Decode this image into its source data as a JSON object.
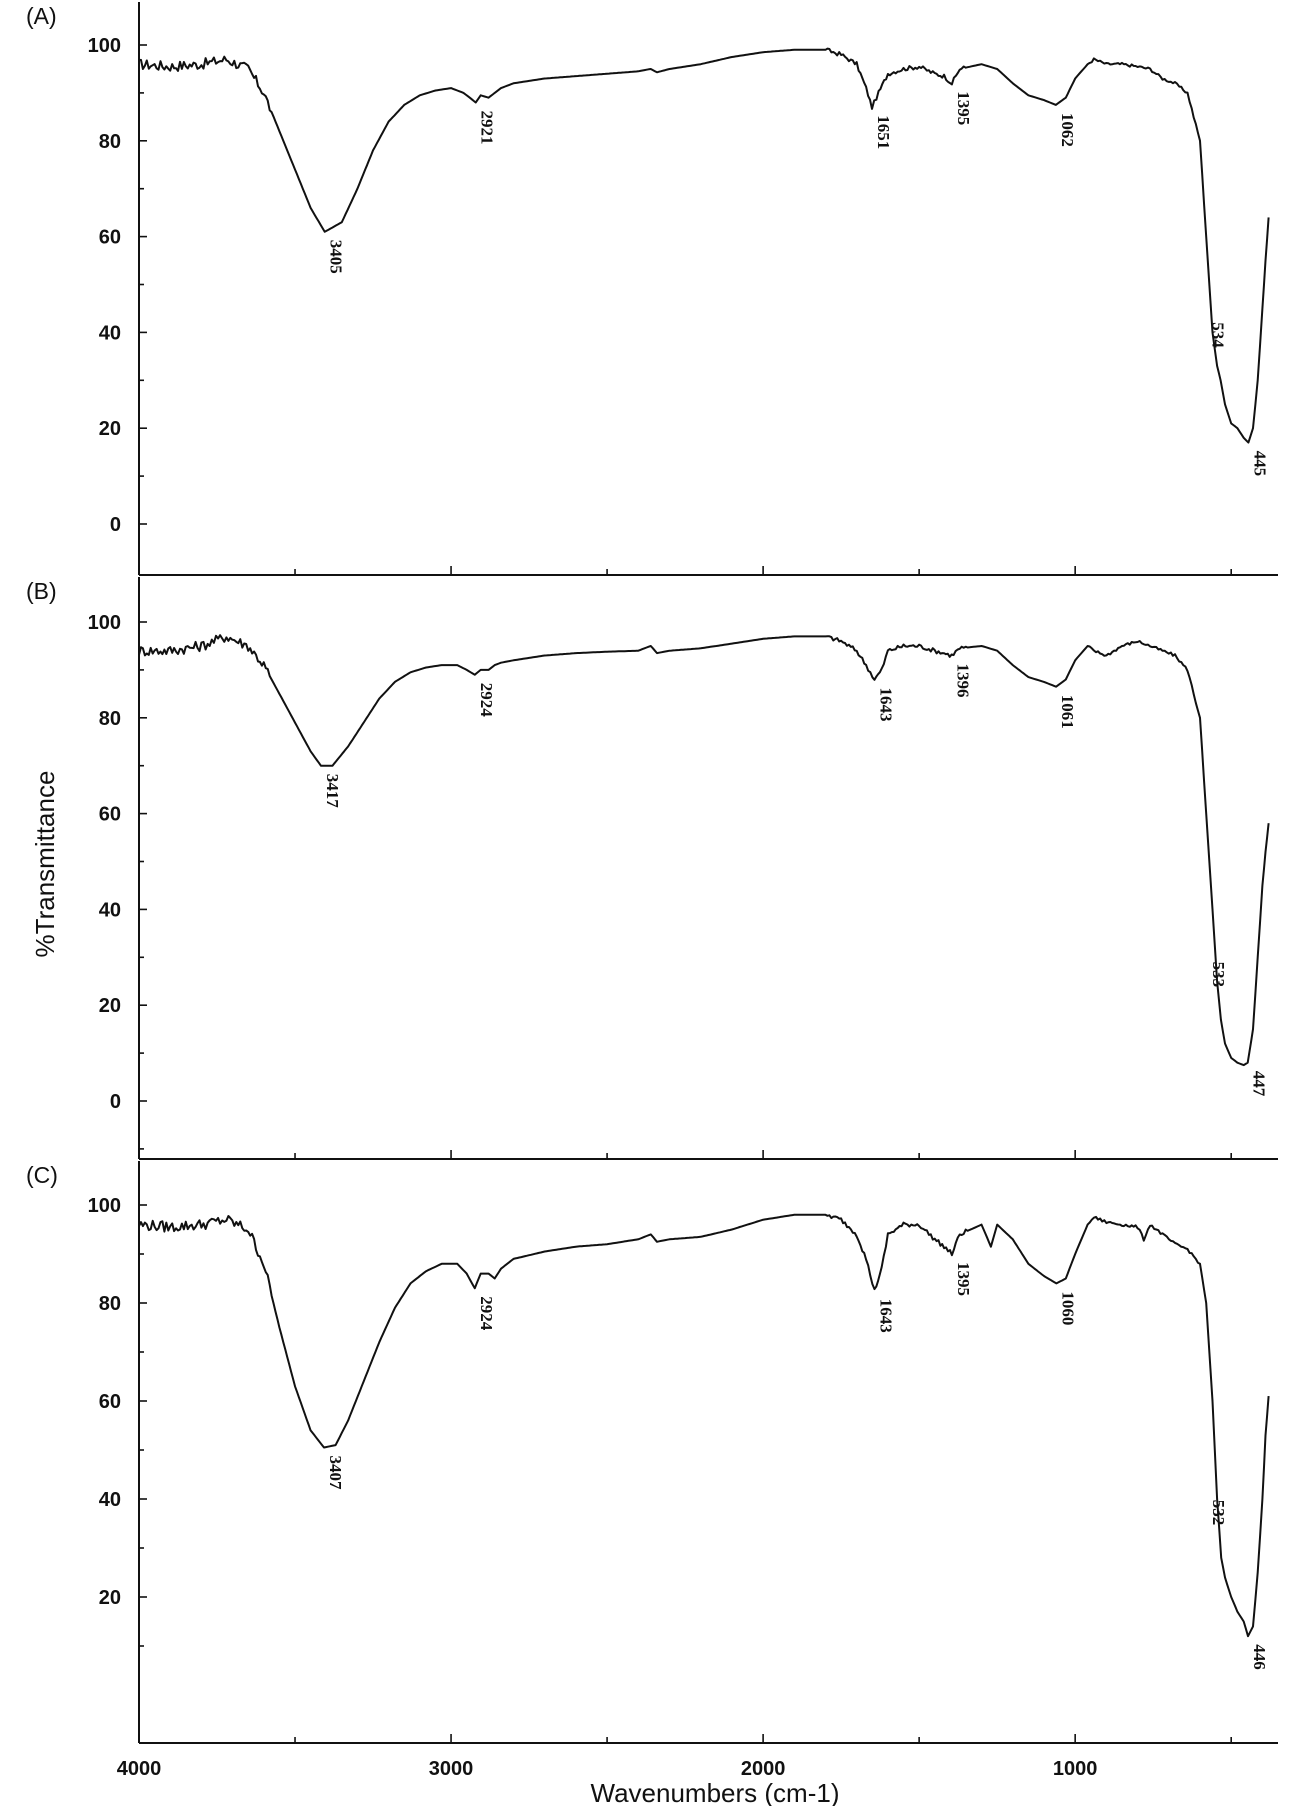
{
  "chart_data": {
    "type": "line",
    "ylabel": "%Transmittance",
    "xlabel": "Wavenumbers (cm-1)",
    "xlim": [
      4000,
      350
    ],
    "x_ticks": [
      4000,
      3000,
      2000,
      1000
    ],
    "x_axis_direction": "decreasing",
    "grid": false,
    "panels": [
      {
        "label": "(A)",
        "ylim": [
          -10,
          110
        ],
        "y_ticks": [
          0,
          20,
          40,
          60,
          80,
          100
        ],
        "series": [
          {
            "x": [
              4000,
              3900,
              3800,
              3720,
              3650,
              3600,
              3550,
              3500,
              3450,
              3405,
              3350,
              3300,
              3250,
              3200,
              3150,
              3100,
              3050,
              3000,
              2960,
              2940,
              2921,
              2905,
              2880,
              2860,
              2840,
              2800,
              2700,
              2600,
              2500,
              2400,
              2360,
              2340,
              2300,
              2200,
              2100,
              2000,
              1900,
              1800,
              1750,
              1700,
              1670,
              1651,
              1630,
              1600,
              1550,
              1500,
              1450,
              1420,
              1395,
              1370,
              1300,
              1250,
              1200,
              1150,
              1100,
              1062,
              1030,
              1000,
              960,
              940,
              900,
              850,
              800,
              760,
              720,
              680,
              640,
              600,
              580,
              560,
              545,
              534,
              520,
              500,
              480,
              460,
              445,
              430,
              415,
              400,
              390,
              380
            ],
            "y": [
              96,
              95.5,
              96,
              97,
              95,
              90,
              82,
              74,
              66,
              61,
              63,
              70,
              78,
              84,
              87.5,
              89.5,
              90.5,
              91,
              90,
              89,
              88,
              89.5,
              89,
              90,
              91,
              92,
              93,
              93.5,
              94,
              94.5,
              95,
              94.3,
              95,
              96,
              97.5,
              98.5,
              99,
              99,
              98,
              96,
              91,
              87,
              90,
              94,
              95,
              95.5,
              94,
              93.5,
              92,
              95,
              96,
              95,
              92,
              89.5,
              88.5,
              87.5,
              89,
              93,
              96,
              97,
              96,
              96,
              95.5,
              95,
              93,
              92,
              90,
              80,
              60,
              40,
              33,
              30,
              25,
              21,
              20,
              18,
              17,
              20,
              30,
              45,
              55,
              64
            ]
          }
        ],
        "annotations": [
          "3405",
          "2921",
          "1651",
          "1395",
          "1062",
          "534",
          "445"
        ]
      },
      {
        "label": "(B)",
        "ylim": [
          -10,
          110
        ],
        "y_ticks": [
          0,
          20,
          40,
          60,
          80,
          100
        ],
        "series": [
          {
            "x": [
              4000,
              3900,
              3800,
              3720,
              3650,
              3600,
              3550,
              3500,
              3450,
              3417,
              3380,
              3330,
              3280,
              3230,
              3180,
              3130,
              3080,
              3030,
              2980,
              2950,
              2924,
              2905,
              2880,
              2860,
              2840,
              2800,
              2700,
              2600,
              2500,
              2400,
              2360,
              2340,
              2300,
              2200,
              2100,
              2000,
              1900,
              1800,
              1750,
              1700,
              1670,
              1643,
              1620,
              1600,
              1550,
              1500,
              1450,
              1420,
              1396,
              1370,
              1300,
              1250,
              1200,
              1150,
              1100,
              1061,
              1030,
              1000,
              960,
              940,
              900,
              850,
              800,
              760,
              720,
              680,
              640,
              600,
              580,
              560,
              545,
              533,
              520,
              500,
              480,
              460,
              447,
              430,
              415,
              400,
              390,
              380
            ],
            "y": [
              94,
              94,
              95,
              97,
              95,
              91,
              85,
              79,
              73,
              70,
              70,
              74,
              79,
              84,
              87.5,
              89.5,
              90.5,
              91,
              91,
              90,
              89,
              90,
              90,
              91,
              91.5,
              92,
              93,
              93.5,
              93.8,
              94,
              95,
              93.5,
              94,
              94.5,
              95.5,
              96.5,
              97,
              97,
              96,
              94,
              91,
              88,
              90,
              94,
              95,
              95,
              94,
              93.5,
              93,
              94.5,
              95,
              94,
              91,
              88.5,
              87.5,
              86.5,
              88,
              92,
              95,
              94,
              93,
              95,
              96,
              95,
              94,
              93,
              90,
              80,
              60,
              40,
              25,
              17,
              12,
              9,
              8,
              7.5,
              8,
              15,
              30,
              45,
              52,
              58
            ]
          }
        ],
        "annotations": [
          "3417",
          "2924",
          "1643",
          "1396",
          "1061",
          "533",
          "447"
        ]
      },
      {
        "label": "(C)",
        "ylim": [
          0,
          110
        ],
        "y_ticks": [
          20,
          40,
          60,
          80,
          100
        ],
        "series": [
          {
            "x": [
              4000,
              3900,
              3800,
              3720,
              3650,
              3600,
              3550,
              3500,
              3450,
              3407,
              3370,
              3330,
              3280,
              3230,
              3180,
              3130,
              3080,
              3030,
              2980,
              2950,
              2924,
              2905,
              2880,
              2860,
              2840,
              2800,
              2700,
              2600,
              2500,
              2400,
              2360,
              2340,
              2300,
              2200,
              2100,
              2000,
              1900,
              1800,
              1750,
              1700,
              1670,
              1643,
              1620,
              1600,
              1550,
              1500,
              1450,
              1420,
              1395,
              1370,
              1300,
              1270,
              1250,
              1200,
              1150,
              1100,
              1060,
              1030,
              1000,
              960,
              940,
              900,
              850,
              800,
              780,
              760,
              720,
              680,
              640,
              600,
              580,
              560,
              545,
              532,
              520,
              500,
              480,
              460,
              446,
              430,
              415,
              400,
              390,
              380
            ],
            "y": [
              96,
              95.5,
              96,
              97,
              95,
              88,
              75,
              63,
              54,
              50.5,
              51,
              56,
              64,
              72,
              79,
              84,
              86.5,
              88,
              88,
              86,
              83,
              86,
              86,
              85,
              87,
              89,
              90.5,
              91.5,
              92,
              93,
              94,
              92.5,
              93,
              93.5,
              95,
              97,
              98,
              98,
              97,
              94,
              89,
              82.5,
              87,
              94,
              96,
              96,
              93,
              91.5,
              90,
              94,
              96,
              91.5,
              96,
              93,
              88,
              85.5,
              84,
              85,
              90,
              96,
              97.5,
              96.5,
              96,
              95.5,
              93,
              96,
              94,
              92,
              91,
              88,
              80,
              60,
              40,
              28,
              24,
              20,
              17,
              15,
              12,
              14,
              25,
              40,
              53,
              61
            ]
          }
        ],
        "annotations": [
          "3407",
          "2924",
          "1643",
          "1395",
          "1060",
          "532",
          "446"
        ]
      }
    ]
  },
  "colors": {
    "line": "#111111",
    "axis": "#111111",
    "background": "#ffffff"
  }
}
